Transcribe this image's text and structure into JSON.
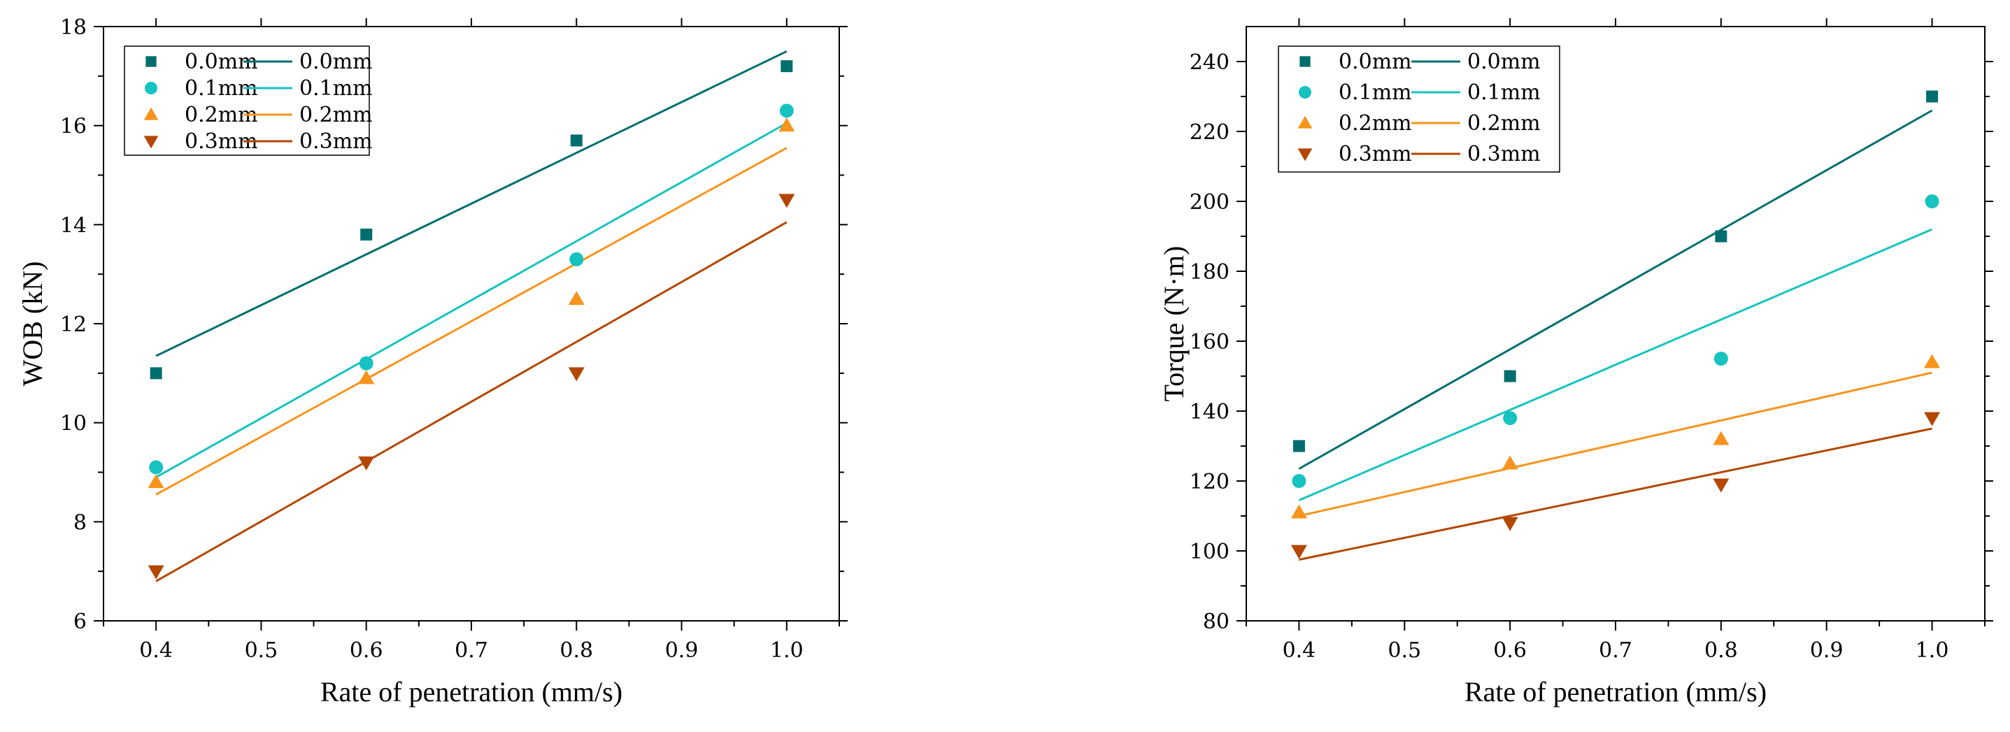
{
  "chart_data": [
    {
      "type": "scatter",
      "title": "",
      "xlabel": "Rate of penetration (mm/s)",
      "ylabel": "WOB (kN)",
      "xlim": [
        0.35,
        1.05
      ],
      "ylim": [
        6,
        18
      ],
      "xticks": [
        0.4,
        0.5,
        0.6,
        0.7,
        0.8,
        0.9,
        1.0
      ],
      "xtick_labels": [
        "0.4",
        "0.5",
        "0.6",
        "0.7",
        "0.8",
        "0.9",
        "1.0"
      ],
      "yticks": [
        6,
        8,
        10,
        12,
        14,
        16,
        18
      ],
      "ytick_labels": [
        "6",
        "8",
        "10",
        "12",
        "14",
        "16",
        "18"
      ],
      "legend_position": "top-left",
      "series": [
        {
          "name": "0.0mm",
          "marker": "square",
          "color": "#006e6e",
          "x": [
            0.4,
            0.6,
            0.8,
            1.0
          ],
          "y": [
            11.0,
            13.8,
            15.7,
            17.2
          ],
          "fit": {
            "x": [
              0.4,
              1.0
            ],
            "y": [
              11.35,
              17.5
            ]
          }
        },
        {
          "name": "0.1mm",
          "marker": "circle",
          "color": "#17c3c0",
          "x": [
            0.4,
            0.6,
            0.8,
            1.0
          ],
          "y": [
            9.1,
            11.2,
            13.3,
            16.3
          ],
          "fit": {
            "x": [
              0.4,
              1.0
            ],
            "y": [
              8.9,
              16.05
            ]
          }
        },
        {
          "name": "0.2mm",
          "marker": "triangle-up",
          "color": "#f7941d",
          "x": [
            0.4,
            0.6,
            0.8,
            1.0
          ],
          "y": [
            8.8,
            10.9,
            12.5,
            16.0
          ],
          "fit": {
            "x": [
              0.4,
              1.0
            ],
            "y": [
              8.55,
              15.55
            ]
          }
        },
        {
          "name": "0.3mm",
          "marker": "triangle-down",
          "color": "#b34700",
          "x": [
            0.4,
            0.6,
            0.8,
            1.0
          ],
          "y": [
            7.0,
            9.2,
            11.0,
            14.5
          ],
          "fit": {
            "x": [
              0.4,
              1.0
            ],
            "y": [
              6.8,
              14.05
            ]
          }
        }
      ]
    },
    {
      "type": "scatter",
      "title": "",
      "xlabel": "Rate of penetration (mm/s)",
      "ylabel": "Torque (N·m)",
      "xlim": [
        0.35,
        1.05
      ],
      "ylim": [
        80,
        250
      ],
      "xticks": [
        0.4,
        0.5,
        0.6,
        0.7,
        0.8,
        0.9,
        1.0
      ],
      "xtick_labels": [
        "0.4",
        "0.5",
        "0.6",
        "0.7",
        "0.8",
        "0.9",
        "1.0"
      ],
      "yticks": [
        80,
        100,
        120,
        140,
        160,
        180,
        200,
        220,
        240
      ],
      "ytick_labels": [
        "80",
        "100",
        "120",
        "140",
        "160",
        "180",
        "200",
        "220",
        "240"
      ],
      "legend_position": "top-left",
      "series": [
        {
          "name": "0.0mm",
          "marker": "square",
          "color": "#006e6e",
          "x": [
            0.4,
            0.6,
            0.8,
            1.0
          ],
          "y": [
            130,
            150,
            190,
            230
          ],
          "fit": {
            "x": [
              0.4,
              1.0
            ],
            "y": [
              123.5,
              226
            ]
          }
        },
        {
          "name": "0.1mm",
          "marker": "circle",
          "color": "#17c3c0",
          "x": [
            0.4,
            0.6,
            0.8,
            1.0
          ],
          "y": [
            120,
            138,
            155,
            200
          ],
          "fit": {
            "x": [
              0.4,
              1.0
            ],
            "y": [
              114.5,
              192
            ]
          }
        },
        {
          "name": "0.2mm",
          "marker": "triangle-up",
          "color": "#f7941d",
          "x": [
            0.4,
            0.6,
            0.8,
            1.0
          ],
          "y": [
            111,
            125,
            132,
            154
          ],
          "fit": {
            "x": [
              0.4,
              1.0
            ],
            "y": [
              110,
              151
            ]
          }
        },
        {
          "name": "0.3mm",
          "marker": "triangle-down",
          "color": "#b34700",
          "x": [
            0.4,
            0.6,
            0.8,
            1.0
          ],
          "y": [
            100,
            108,
            119,
            138
          ],
          "fit": {
            "x": [
              0.4,
              1.0
            ],
            "y": [
              97.5,
              135
            ]
          }
        }
      ]
    }
  ]
}
